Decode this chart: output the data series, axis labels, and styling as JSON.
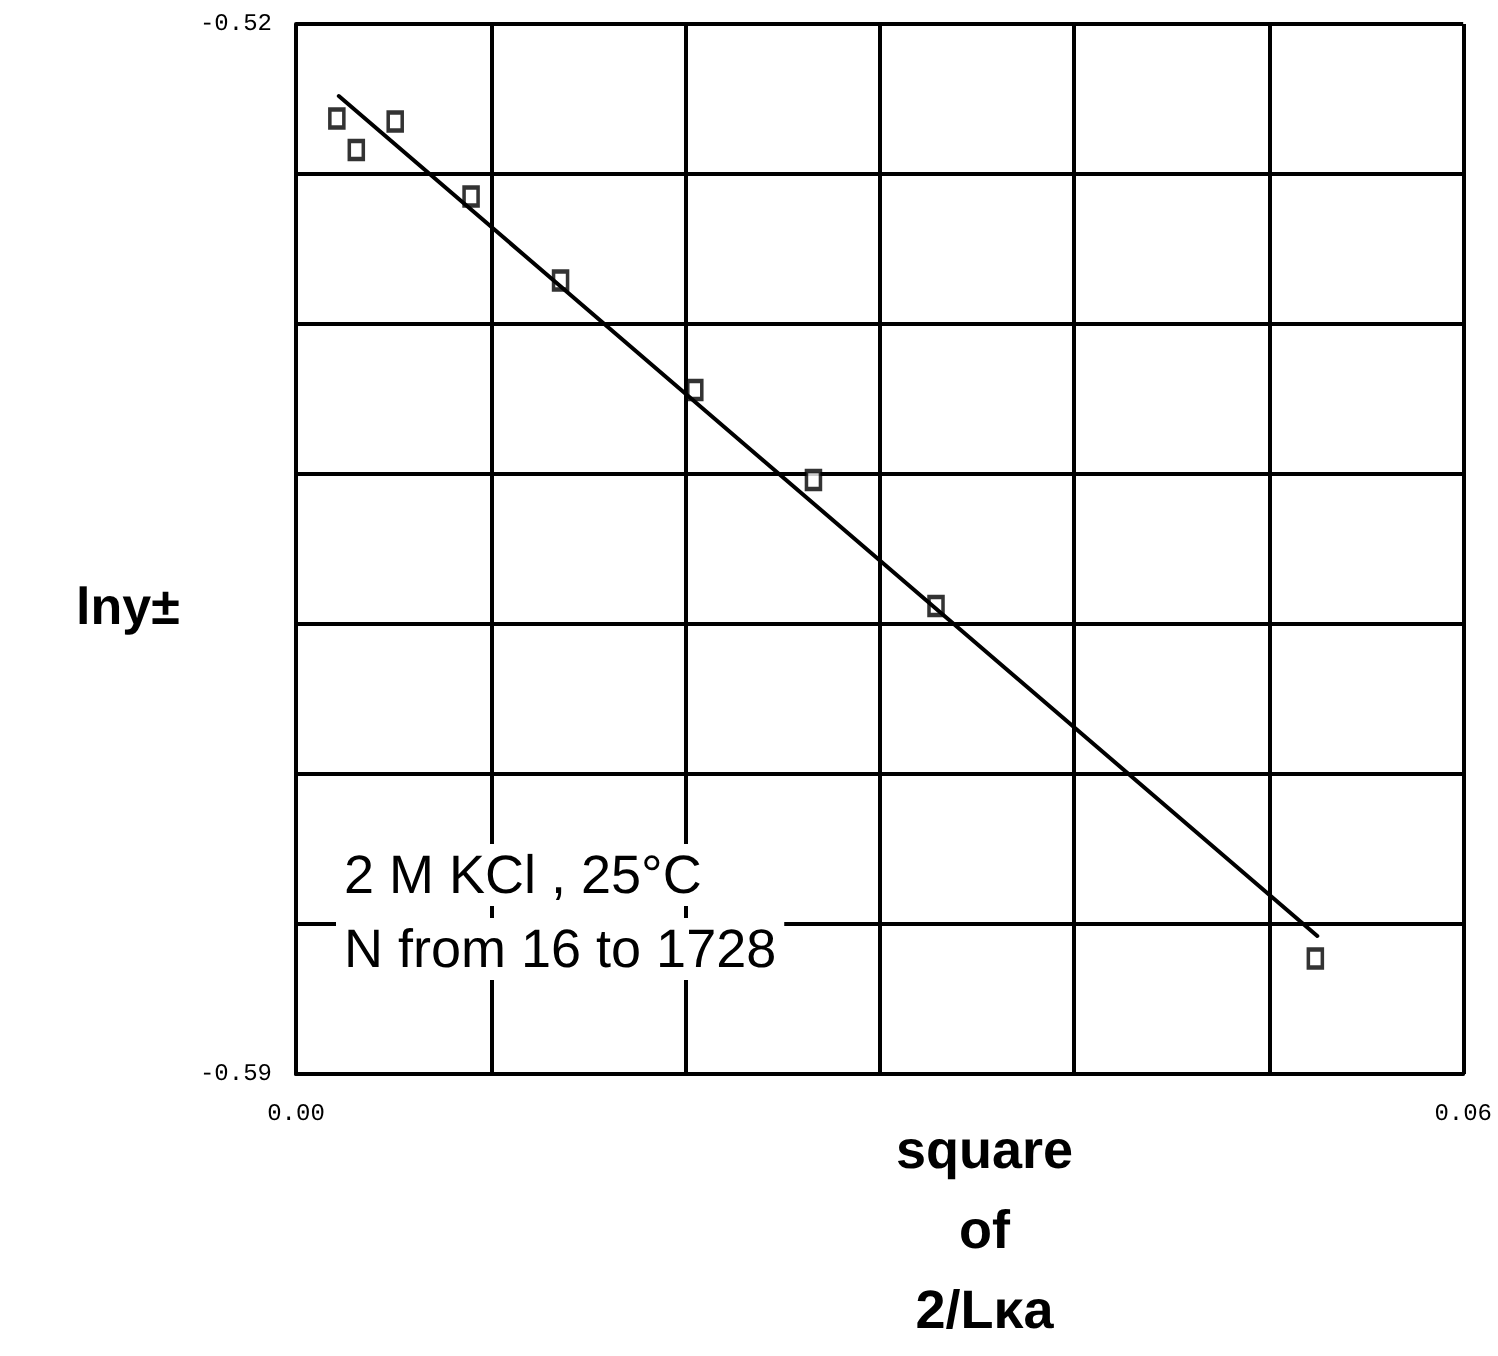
{
  "chart_data": {
    "type": "scatter",
    "xlabel": "square\nof\n2/Lκa",
    "ylabel": "lny±",
    "annotations": [
      "2 M KCl , 25°C",
      "N from 16 to 1728"
    ],
    "xlim": [
      0,
      0.06
    ],
    "ylim": [
      -0.59,
      -0.52
    ],
    "xticks": [
      {
        "value": 0,
        "label": "0.00"
      },
      {
        "value": 0.01,
        "label": null
      },
      {
        "value": 0.02,
        "label": null
      },
      {
        "value": 0.03,
        "label": null
      },
      {
        "value": 0.04,
        "label": null
      },
      {
        "value": 0.05,
        "label": null
      },
      {
        "value": 0.06,
        "label": "0.06"
      }
    ],
    "yticks": [
      {
        "value": -0.59,
        "label": "-0.59"
      },
      {
        "value": -0.58,
        "label": null
      },
      {
        "value": -0.57,
        "label": null
      },
      {
        "value": -0.56,
        "label": null
      },
      {
        "value": -0.55,
        "label": null
      },
      {
        "value": -0.54,
        "label": null
      },
      {
        "value": -0.53,
        "label": null
      },
      {
        "value": -0.52,
        "label": "-0.52"
      }
    ],
    "grid": true,
    "series": [
      {
        "marker": "square",
        "color": "#000000",
        "x": [
          0.0021,
          0.0031,
          0.0051,
          0.009,
          0.0136,
          0.0205,
          0.0266,
          0.0329,
          0.0524
        ],
        "values": [
          -0.5263,
          -0.5284,
          -0.5265,
          -0.5315,
          -0.5371,
          -0.5444,
          -0.5504,
          -0.5588,
          -0.5823
        ]
      },
      {
        "type": "line",
        "color": "#000000",
        "line_style": "solid",
        "x": [
          0.0022,
          0.0525
        ],
        "values": [
          -0.5248,
          -0.5808
        ]
      }
    ]
  }
}
